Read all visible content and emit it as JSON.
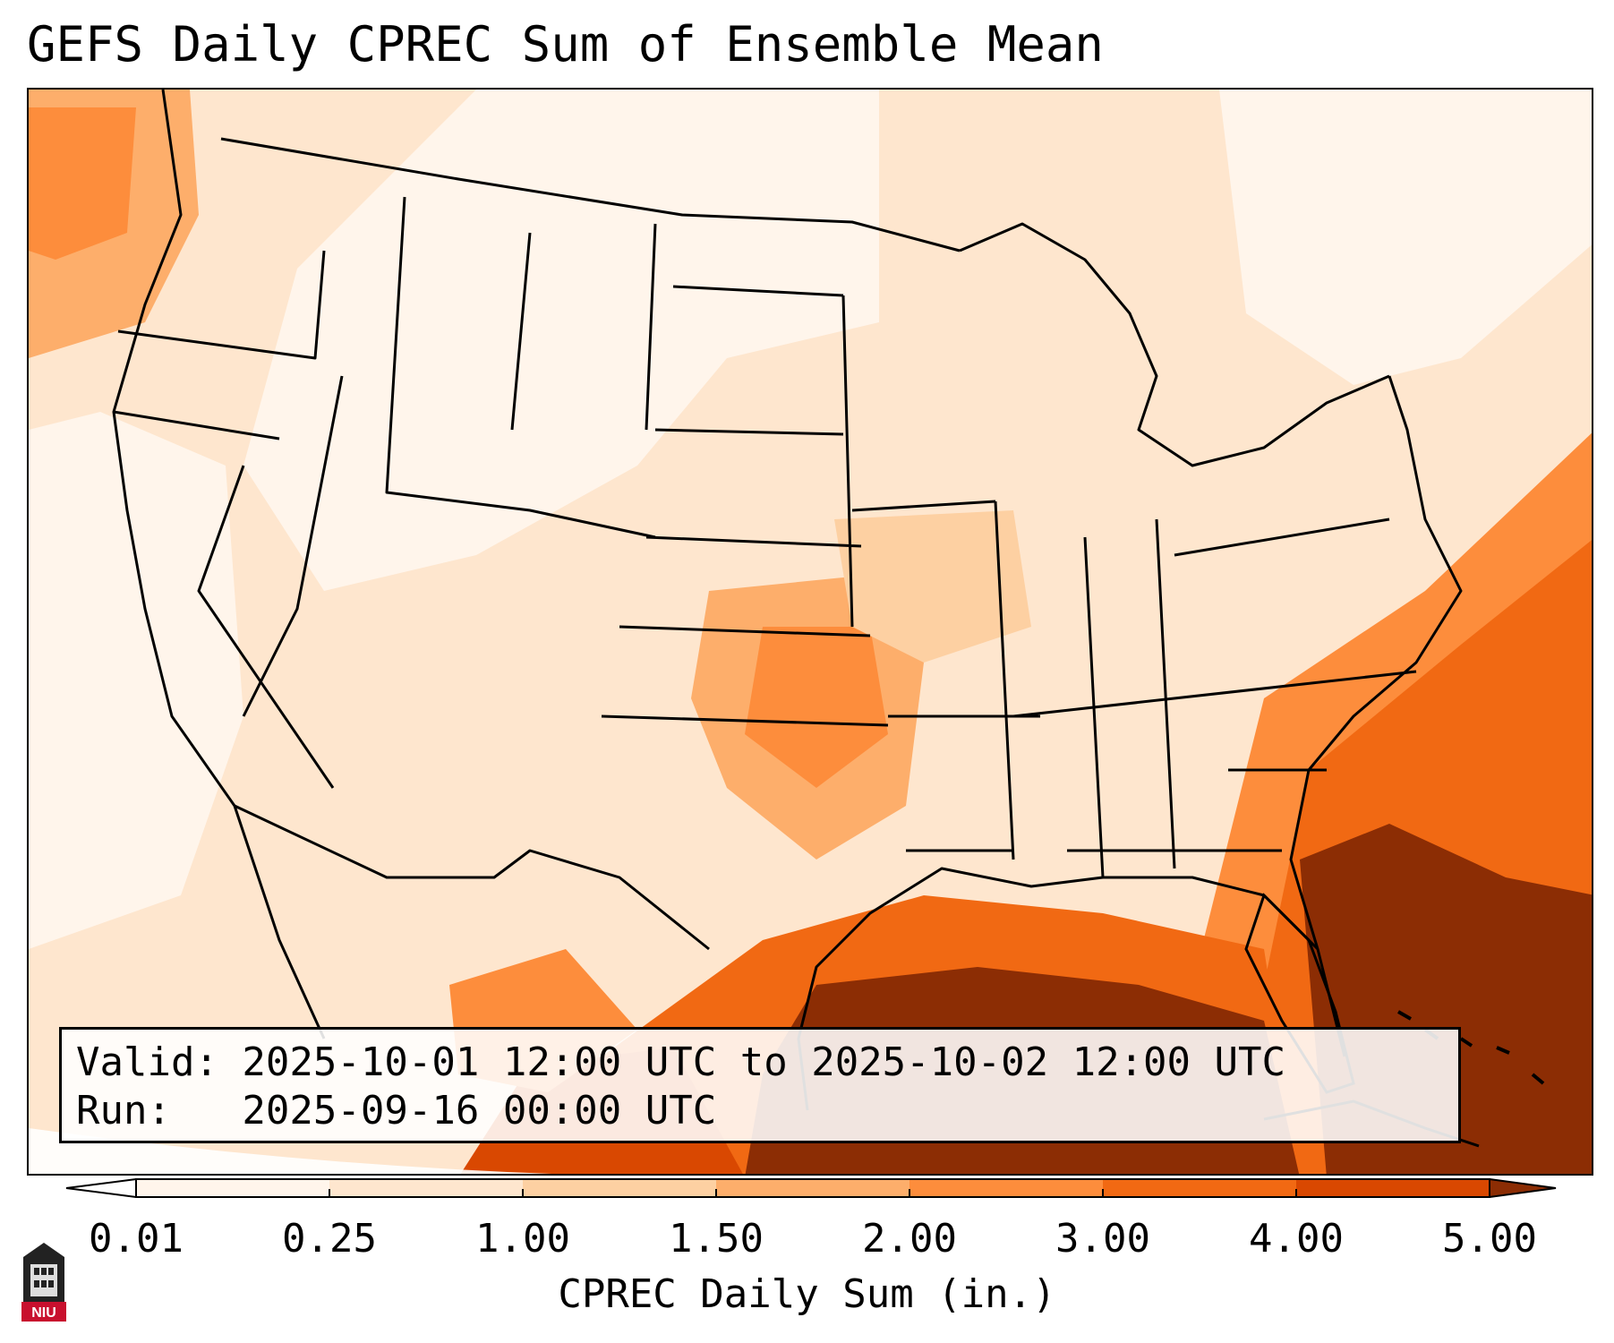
{
  "title": "GEFS Daily CPREC Sum of Ensemble Mean",
  "info": {
    "valid_line": "Valid: 2025-10-01 12:00 UTC to 2025-10-02 12:00 UTC",
    "run_line": "Run:   2025-09-16 00:00 UTC"
  },
  "colorbar": {
    "label": "CPREC Daily Sum (in.)",
    "ticks": [
      "0.01",
      "0.25",
      "1.00",
      "1.50",
      "2.00",
      "3.00",
      "4.00",
      "5.00"
    ],
    "colors": [
      "#fff5eb",
      "#fee6ce",
      "#fdd0a2",
      "#fdae6b",
      "#fd8d3c",
      "#f16913",
      "#d94801",
      "#8c2d04"
    ]
  },
  "logo": {
    "text": "NIU"
  }
}
